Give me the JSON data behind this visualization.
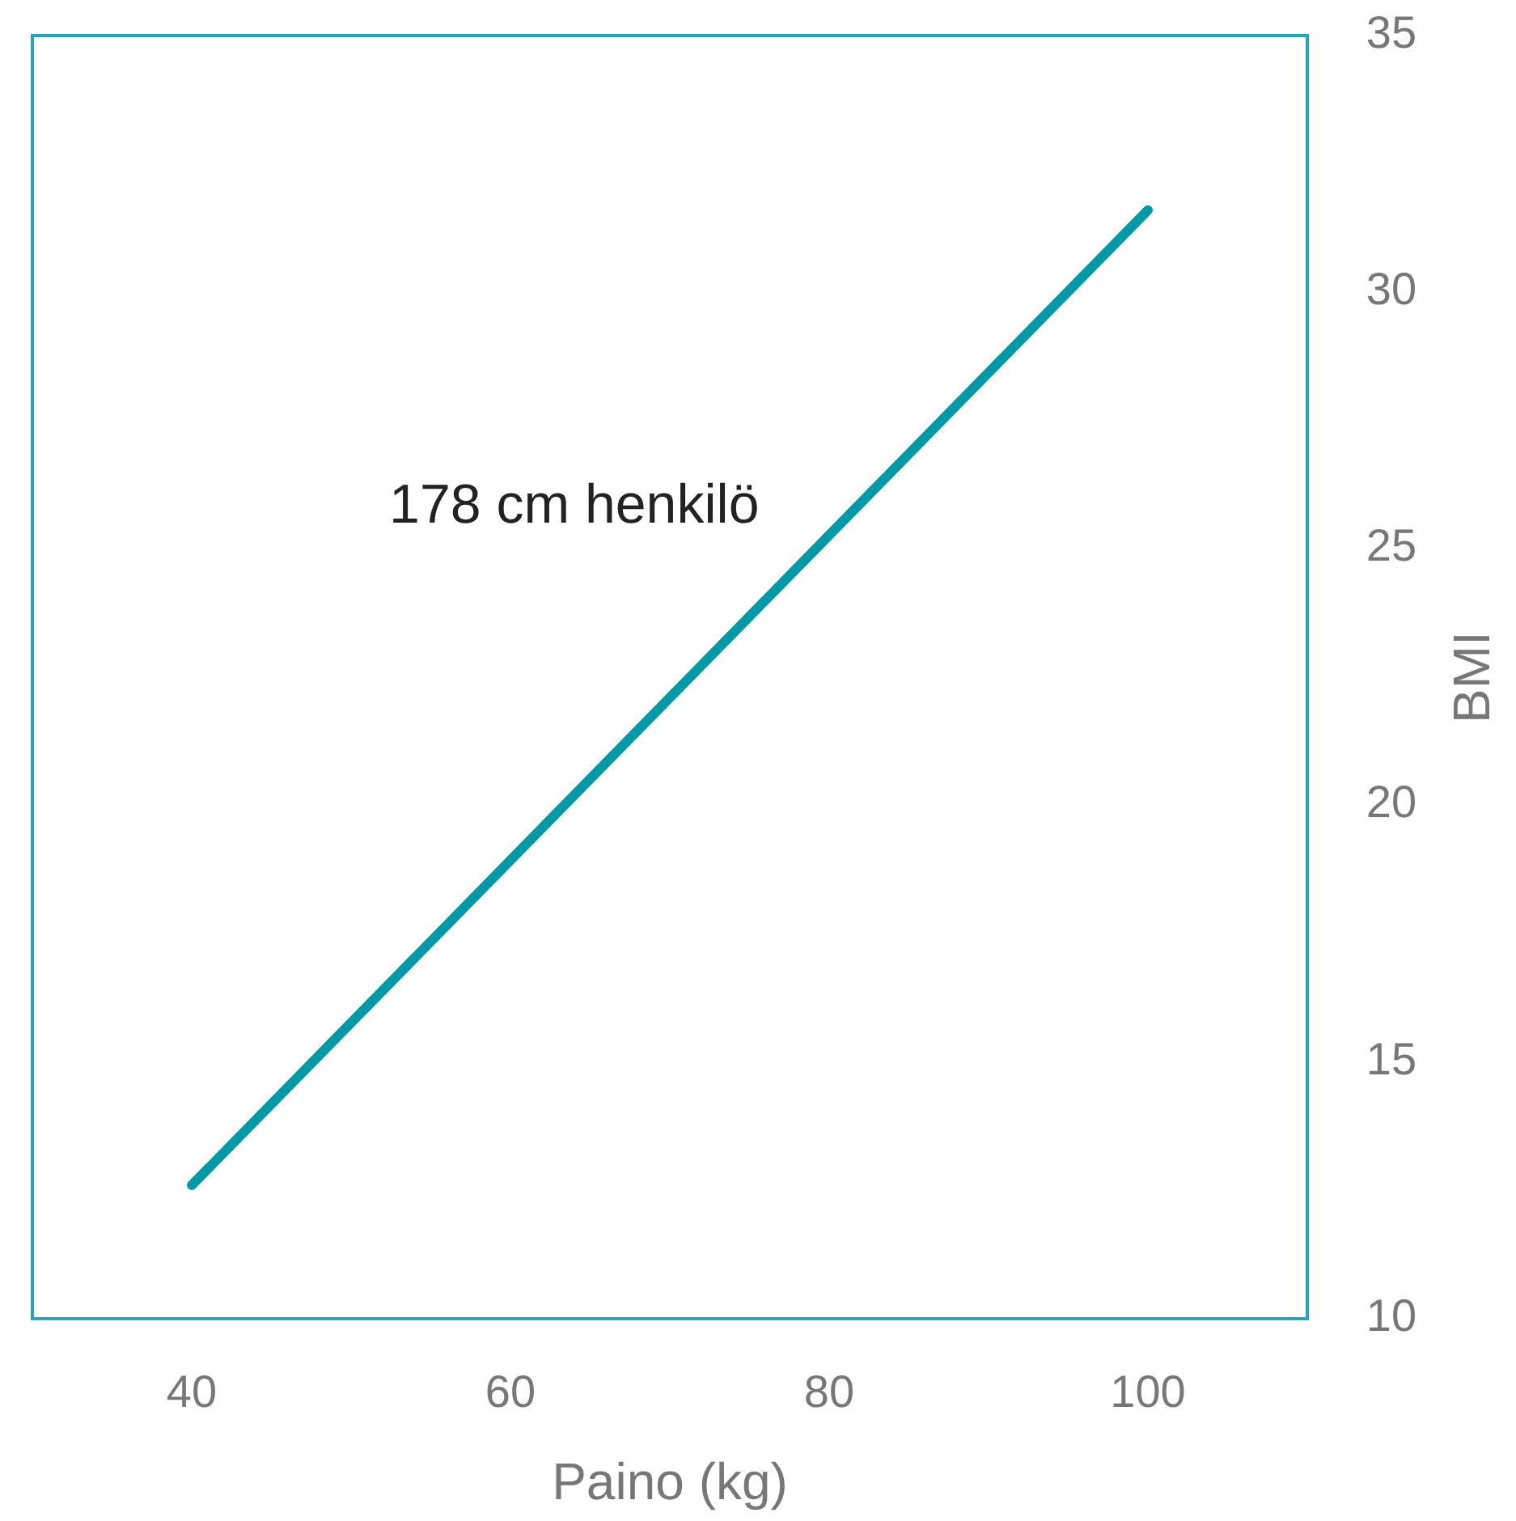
{
  "chart_data": {
    "type": "line",
    "xlabel": "Paino (kg)",
    "ylabel": "BMI",
    "xlim": [
      30,
      110
    ],
    "xticks": [
      40,
      60,
      80,
      100
    ],
    "ylim": [
      10,
      35
    ],
    "yticks": [
      10,
      15,
      20,
      25,
      30,
      35
    ],
    "grid": false,
    "marker": "none",
    "line_style": "solid",
    "series": [
      {
        "name": "178 cm henkilö",
        "color": "#0099a8",
        "x": [
          40,
          100
        ],
        "values": [
          12.6,
          31.6
        ]
      }
    ]
  }
}
